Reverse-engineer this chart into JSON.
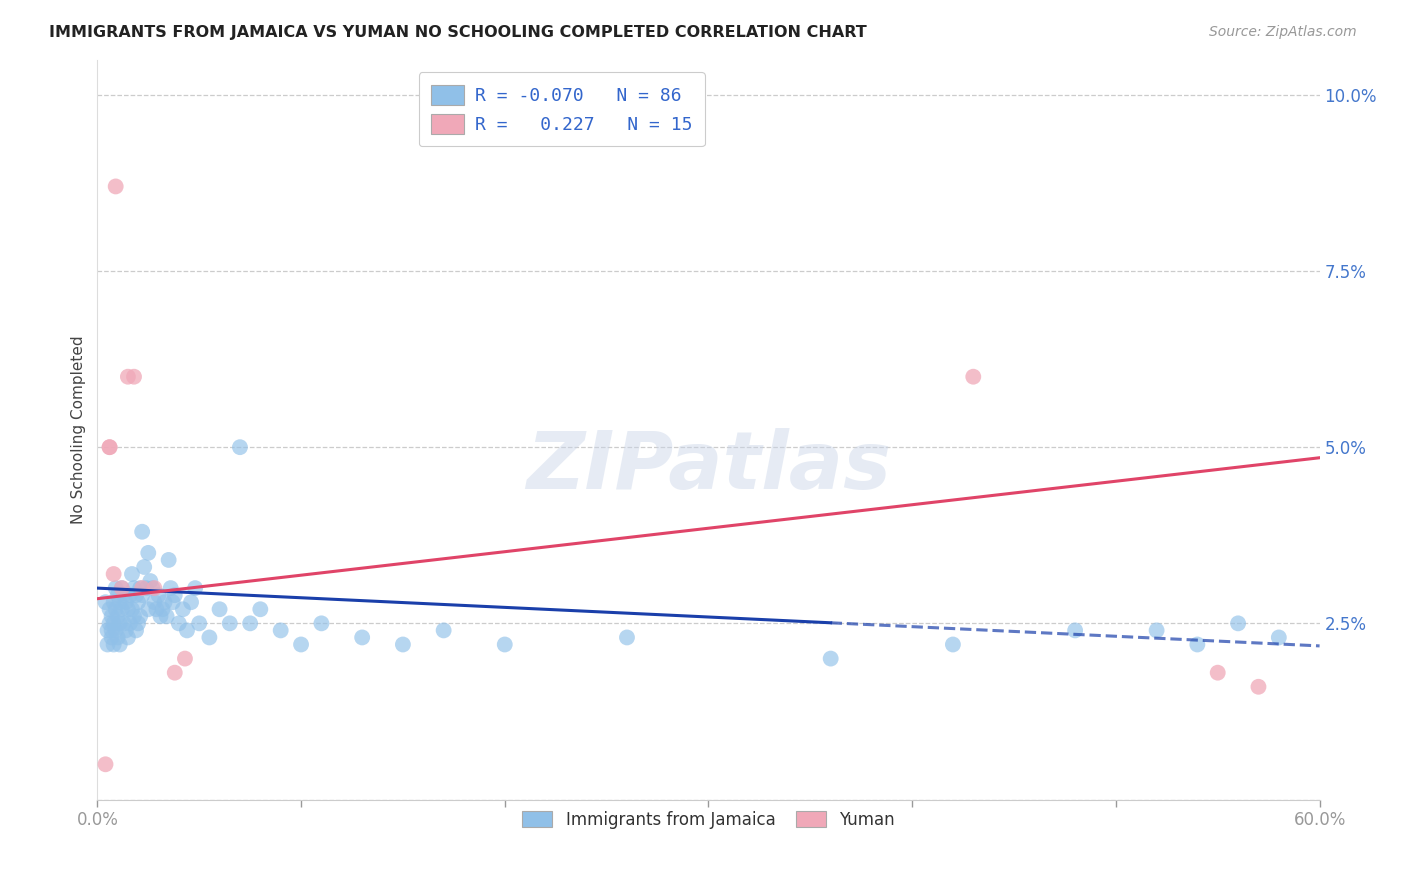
{
  "title": "IMMIGRANTS FROM JAMAICA VS YUMAN NO SCHOOLING COMPLETED CORRELATION CHART",
  "source": "Source: ZipAtlas.com",
  "ylabel_label": "No Schooling Completed",
  "xlim": [
    0.0,
    0.6
  ],
  "ylim": [
    0.0,
    0.105
  ],
  "yticks": [
    0.0,
    0.025,
    0.05,
    0.075,
    0.1
  ],
  "ytick_labels": [
    "",
    "2.5%",
    "5.0%",
    "7.5%",
    "10.0%"
  ],
  "xtick_positions": [
    0.0,
    0.1,
    0.2,
    0.3,
    0.4,
    0.5,
    0.6
  ],
  "xtick_labels": [
    "0.0%",
    "",
    "",
    "",
    "",
    "",
    "60.0%"
  ],
  "blue_color": "#90c0e8",
  "pink_color": "#f0a8b8",
  "blue_line_color": "#1a3faa",
  "pink_line_color": "#e04468",
  "blue_line_solid_end": 0.36,
  "blue_line_x0": 0.0,
  "blue_line_y0": 0.03,
  "blue_line_x1": 0.6,
  "blue_line_y1": 0.0218,
  "pink_line_x0": 0.0,
  "pink_line_y0": 0.0285,
  "pink_line_x1": 0.6,
  "pink_line_y1": 0.0485,
  "legend1_label1": "R = -0.070",
  "legend1_n1": "N = 86",
  "legend1_label2": "R =   0.227",
  "legend1_n2": "N = 15",
  "watermark": "ZIPatlas",
  "blue_x": [
    0.004,
    0.005,
    0.005,
    0.006,
    0.006,
    0.007,
    0.007,
    0.007,
    0.008,
    0.008,
    0.008,
    0.009,
    0.009,
    0.009,
    0.01,
    0.01,
    0.01,
    0.011,
    0.011,
    0.011,
    0.012,
    0.012,
    0.013,
    0.013,
    0.014,
    0.014,
    0.015,
    0.015,
    0.016,
    0.016,
    0.017,
    0.017,
    0.018,
    0.018,
    0.019,
    0.019,
    0.02,
    0.02,
    0.021,
    0.021,
    0.022,
    0.022,
    0.023,
    0.024,
    0.025,
    0.025,
    0.026,
    0.027,
    0.028,
    0.029,
    0.03,
    0.031,
    0.032,
    0.033,
    0.034,
    0.035,
    0.036,
    0.037,
    0.038,
    0.04,
    0.042,
    0.044,
    0.046,
    0.048,
    0.05,
    0.055,
    0.06,
    0.065,
    0.07,
    0.075,
    0.08,
    0.09,
    0.1,
    0.11,
    0.13,
    0.15,
    0.17,
    0.2,
    0.26,
    0.36,
    0.42,
    0.48,
    0.52,
    0.54,
    0.56,
    0.58
  ],
  "blue_y": [
    0.028,
    0.024,
    0.022,
    0.027,
    0.025,
    0.026,
    0.024,
    0.023,
    0.028,
    0.025,
    0.022,
    0.03,
    0.027,
    0.024,
    0.029,
    0.026,
    0.023,
    0.028,
    0.025,
    0.022,
    0.03,
    0.027,
    0.029,
    0.025,
    0.028,
    0.024,
    0.027,
    0.023,
    0.029,
    0.025,
    0.032,
    0.027,
    0.03,
    0.026,
    0.029,
    0.024,
    0.028,
    0.025,
    0.03,
    0.026,
    0.038,
    0.029,
    0.033,
    0.03,
    0.035,
    0.027,
    0.031,
    0.03,
    0.028,
    0.027,
    0.029,
    0.026,
    0.027,
    0.028,
    0.026,
    0.034,
    0.03,
    0.028,
    0.029,
    0.025,
    0.027,
    0.024,
    0.028,
    0.03,
    0.025,
    0.023,
    0.027,
    0.025,
    0.05,
    0.025,
    0.027,
    0.024,
    0.022,
    0.025,
    0.023,
    0.022,
    0.024,
    0.022,
    0.023,
    0.02,
    0.022,
    0.024,
    0.024,
    0.022,
    0.025,
    0.023
  ],
  "pink_x": [
    0.004,
    0.006,
    0.006,
    0.008,
    0.009,
    0.012,
    0.015,
    0.018,
    0.022,
    0.028,
    0.038,
    0.043,
    0.43,
    0.55,
    0.57
  ],
  "pink_y": [
    0.005,
    0.05,
    0.05,
    0.032,
    0.087,
    0.03,
    0.06,
    0.06,
    0.03,
    0.03,
    0.018,
    0.02,
    0.06,
    0.018,
    0.016
  ]
}
